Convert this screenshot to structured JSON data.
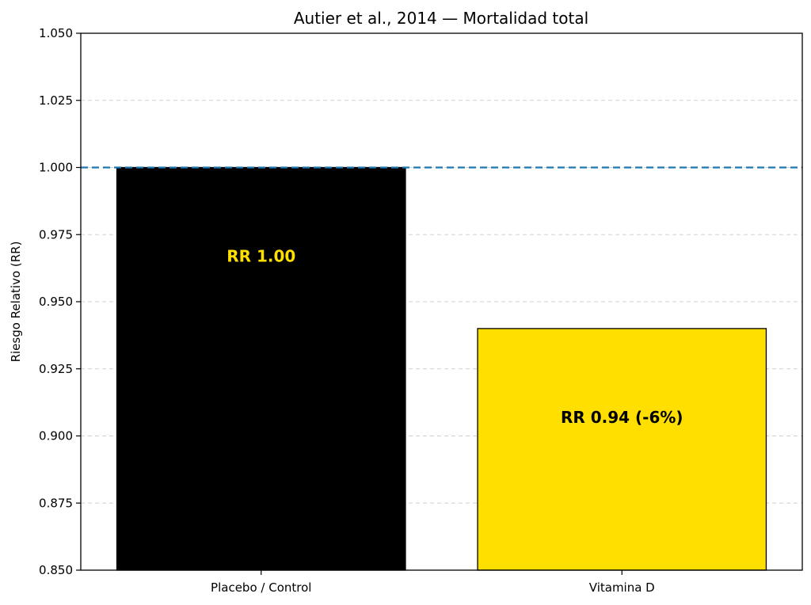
{
  "chart_data": {
    "type": "bar",
    "title": "Autier et al., 2014 — Mortalidad total",
    "xlabel": "",
    "ylabel": "Riesgo Relativo (RR)",
    "ylim": [
      0.85,
      1.05
    ],
    "yticks": [
      "0.850",
      "0.875",
      "0.900",
      "0.925",
      "0.950",
      "0.975",
      "1.000",
      "1.025",
      "1.050"
    ],
    "categories": [
      "Placebo / Control",
      "Vitamina D"
    ],
    "values": [
      1.0,
      0.94
    ],
    "bar_colors": [
      "#000000",
      "#FFDF00"
    ],
    "bar_label_colors": [
      "#FFDF00",
      "#000000"
    ],
    "data_labels": [
      "RR 1.00",
      "RR 0.94 (-6%)"
    ],
    "reference_line": {
      "y": 1.0,
      "style": "dashed",
      "color": "#1f77b4"
    },
    "grid": {
      "y": true,
      "style": "dashed"
    },
    "legend": "none"
  }
}
